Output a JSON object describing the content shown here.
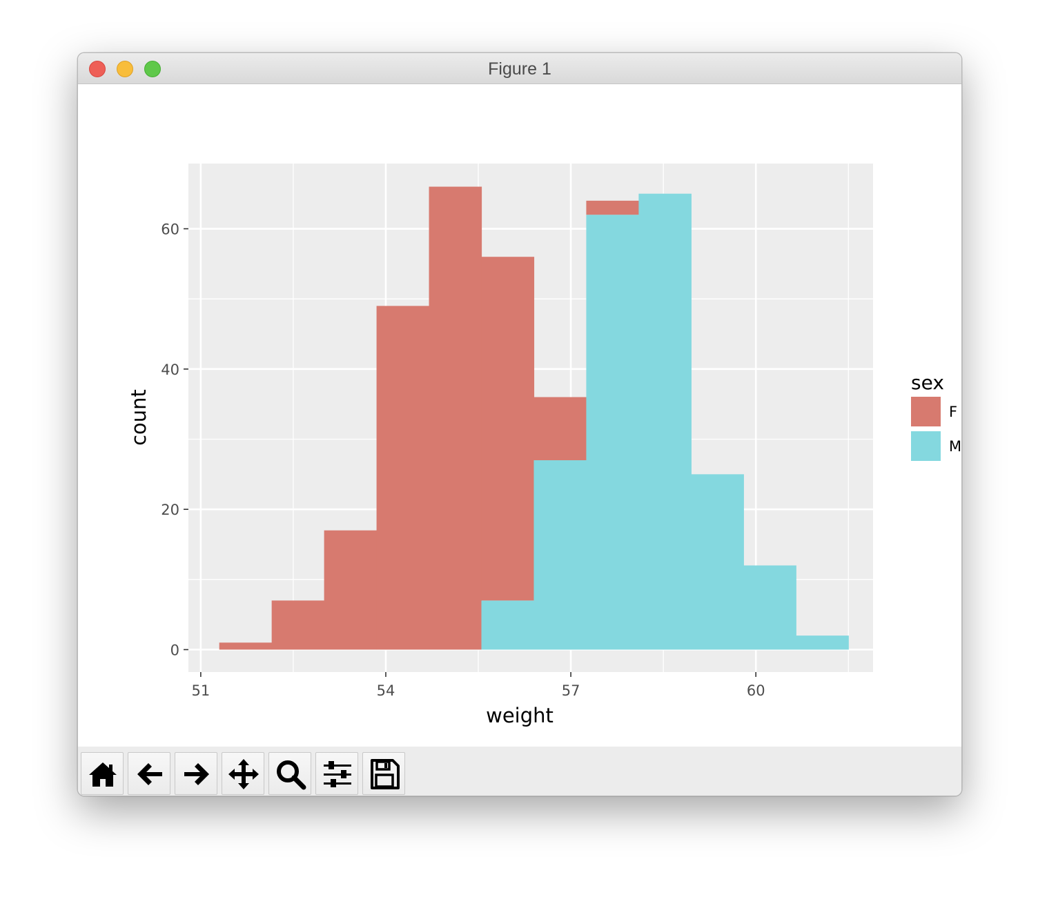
{
  "window": {
    "title": "Figure 1"
  },
  "toolbar": {
    "buttons": [
      {
        "name": "home-button",
        "icon": "home-icon"
      },
      {
        "name": "back-button",
        "icon": "arrow-left-icon"
      },
      {
        "name": "forward-button",
        "icon": "arrow-right-icon"
      },
      {
        "name": "pan-button",
        "icon": "move-icon"
      },
      {
        "name": "zoom-button",
        "icon": "magnifier-icon"
      },
      {
        "name": "configure-subplots-button",
        "icon": "sliders-icon"
      },
      {
        "name": "save-button",
        "icon": "floppy-disk-icon"
      }
    ]
  },
  "chart_data": {
    "type": "bar",
    "subtype": "stacked-histogram",
    "xlabel": "weight",
    "ylabel": "count",
    "xlim": [
      50.8,
      61.9
    ],
    "ylim": [
      -3.2,
      69.3
    ],
    "x_ticks": [
      51,
      54,
      57,
      60
    ],
    "x_tick_labels": [
      "51",
      "54",
      "57",
      "60"
    ],
    "y_ticks": [
      0,
      20,
      40,
      60
    ],
    "y_tick_labels": [
      "0",
      "20",
      "40",
      "60"
    ],
    "grid": true,
    "legend": {
      "title": "sex",
      "position": "right"
    },
    "bin_edges": [
      51.3,
      52.15,
      53.0,
      53.85,
      54.7,
      55.55,
      56.4,
      57.25,
      58.1,
      58.95,
      59.8,
      60.65,
      61.5
    ],
    "series": [
      {
        "name": "F",
        "color": "#d77a6f",
        "values": [
          1,
          7,
          17,
          49,
          66,
          49,
          9,
          2,
          0,
          0,
          0,
          0
        ]
      },
      {
        "name": "M",
        "color": "#84d8df",
        "values": [
          0,
          0,
          0,
          0,
          0,
          7,
          27,
          62,
          65,
          25,
          12,
          2
        ]
      }
    ],
    "panel_background": "#ededed",
    "gridline_color": "#ffffff"
  }
}
